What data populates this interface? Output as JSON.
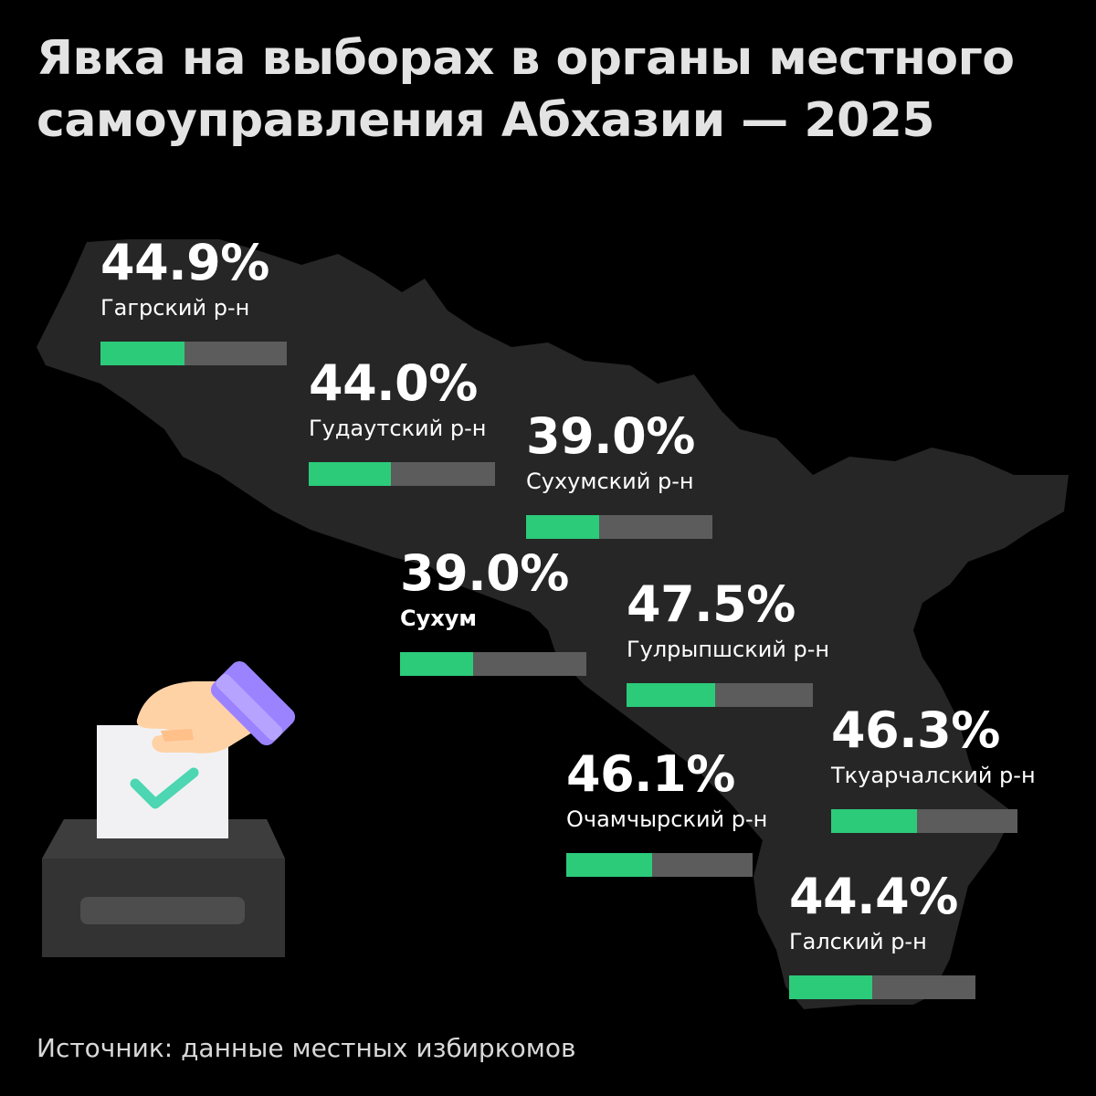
{
  "title": {
    "line1": "Явка на выборах в органы местного",
    "line2": "самоуправления Абхазии — 2025"
  },
  "source": "Источник: данные местных избиркомов",
  "colors": {
    "background": "#000000",
    "map": "#262626",
    "bar_track": "#5c5c5c",
    "bar_fill": "#2ccb7a",
    "text": "#ffffff"
  },
  "illustration": {
    "icon": "ballot-box-icon",
    "elements": [
      "hand-icon",
      "ballot-paper-icon",
      "checkmark-icon",
      "ballot-box-icon"
    ]
  },
  "chart_data": {
    "type": "bar",
    "title": "Явка на выборах в органы местного самоуправления Абхазии — 2025",
    "unit": "%",
    "ylim": [
      0,
      100
    ],
    "categories": [
      "Гагрский р-н",
      "Гудаутский р-н",
      "Сухумский р-н",
      "Сухум",
      "Гулрыпшский р-н",
      "Ткуарчалский р-н",
      "Очамчырский р-н",
      "Галский р-н"
    ],
    "values": [
      44.9,
      44.0,
      39.0,
      39.0,
      47.5,
      46.3,
      46.1,
      44.4
    ],
    "labels": [
      "44.9%",
      "44.0%",
      "39.0%",
      "39.0%",
      "47.5%",
      "46.3%",
      "46.1%",
      "44.4%"
    ]
  }
}
